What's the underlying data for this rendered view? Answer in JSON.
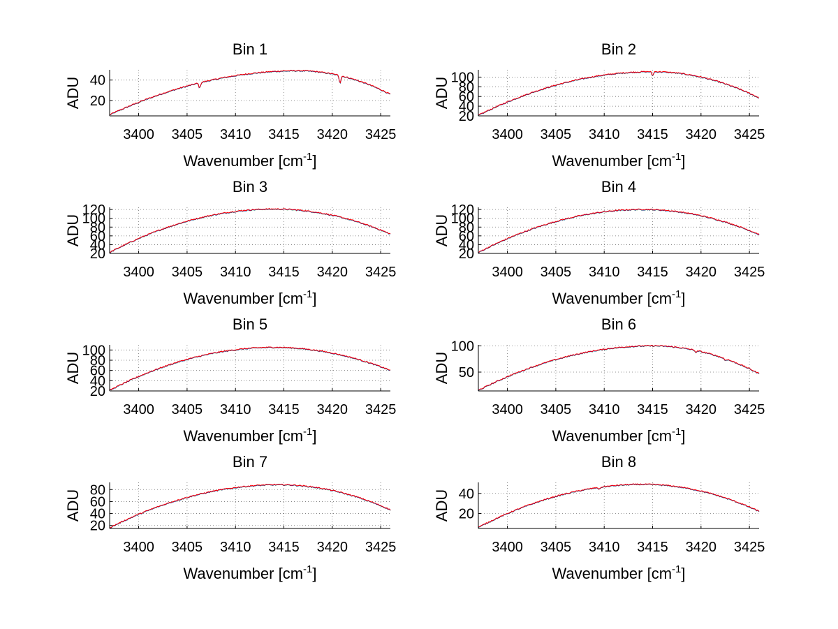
{
  "chart_data": [
    {
      "type": "line",
      "title": "Bin 1",
      "xlabel": "Wavenumber [cm-1]",
      "ylabel": "ADU",
      "xlim": [
        3397,
        3426
      ],
      "ylim": [
        5,
        50
      ],
      "xticks": [
        3400,
        3405,
        3410,
        3415,
        3420,
        3425
      ],
      "yticks": [
        20,
        40
      ],
      "grid": true,
      "peak": {
        "x": 3416.5,
        "y": 49
      },
      "start_y": 6,
      "end_y": 26,
      "dips": [
        {
          "x": 3406.3,
          "depth": 5
        },
        {
          "x": 3420.8,
          "depth": 7
        }
      ],
      "series": [
        {
          "color": "#2ca02c"
        },
        {
          "color": "#0000ff"
        },
        {
          "color": "#ff0000"
        }
      ]
    },
    {
      "type": "line",
      "title": "Bin 2",
      "xlabel": "Wavenumber [cm-1]",
      "ylabel": "ADU",
      "xlim": [
        3397,
        3426
      ],
      "ylim": [
        20,
        115
      ],
      "xticks": [
        3400,
        3405,
        3410,
        3415,
        3420,
        3425
      ],
      "yticks": [
        20,
        40,
        60,
        80,
        100
      ],
      "grid": true,
      "peak": {
        "x": 3415,
        "y": 111
      },
      "start_y": 21,
      "end_y": 57,
      "dips": [
        {
          "x": 3415,
          "depth": 8
        }
      ],
      "series": [
        {
          "color": "#2ca02c"
        },
        {
          "color": "#0000ff"
        },
        {
          "color": "#ff0000"
        }
      ]
    },
    {
      "type": "line",
      "title": "Bin 3",
      "xlabel": "Wavenumber [cm-1]",
      "ylabel": "ADU",
      "xlim": [
        3397,
        3426
      ],
      "ylim": [
        20,
        125
      ],
      "xticks": [
        3400,
        3405,
        3410,
        3415,
        3420,
        3425
      ],
      "yticks": [
        20,
        40,
        60,
        80,
        100,
        120
      ],
      "grid": true,
      "peak": {
        "x": 3414,
        "y": 121
      },
      "start_y": 22,
      "end_y": 64,
      "dips": [],
      "series": [
        {
          "color": "#2ca02c"
        },
        {
          "color": "#0000ff"
        },
        {
          "color": "#ff0000"
        }
      ]
    },
    {
      "type": "line",
      "title": "Bin 4",
      "xlabel": "Wavenumber [cm-1]",
      "ylabel": "ADU",
      "xlim": [
        3397,
        3426
      ],
      "ylim": [
        20,
        125
      ],
      "xticks": [
        3400,
        3405,
        3410,
        3415,
        3420,
        3425
      ],
      "yticks": [
        20,
        40,
        60,
        80,
        100,
        120
      ],
      "grid": true,
      "peak": {
        "x": 3414,
        "y": 120
      },
      "start_y": 22,
      "end_y": 63,
      "dips": [],
      "series": [
        {
          "color": "#2ca02c"
        },
        {
          "color": "#0000ff"
        },
        {
          "color": "#ff0000"
        }
      ]
    },
    {
      "type": "line",
      "title": "Bin 5",
      "xlabel": "Wavenumber [cm-1]",
      "ylabel": "ADU",
      "xlim": [
        3397,
        3426
      ],
      "ylim": [
        20,
        110
      ],
      "xticks": [
        3400,
        3405,
        3410,
        3415,
        3420,
        3425
      ],
      "yticks": [
        20,
        40,
        60,
        80,
        100
      ],
      "grid": true,
      "peak": {
        "x": 3414,
        "y": 105
      },
      "start_y": 21,
      "end_y": 60,
      "dips": [],
      "series": [
        {
          "color": "#2ca02c"
        },
        {
          "color": "#0000ff"
        },
        {
          "color": "#ff0000"
        }
      ]
    },
    {
      "type": "line",
      "title": "Bin 6",
      "xlabel": "Wavenumber [cm-1]",
      "ylabel": "ADU",
      "xlim": [
        3397,
        3426
      ],
      "ylim": [
        14,
        102
      ],
      "xticks": [
        3400,
        3405,
        3410,
        3415,
        3420,
        3425
      ],
      "yticks": [
        50,
        100
      ],
      "grid": true,
      "peak": {
        "x": 3415,
        "y": 100
      },
      "start_y": 15,
      "end_y": 47,
      "dips": [
        {
          "x": 3419.5,
          "depth": 4
        },
        {
          "x": 3422.5,
          "depth": 3
        }
      ],
      "series": [
        {
          "color": "#2ca02c"
        },
        {
          "color": "#0000ff"
        },
        {
          "color": "#ff0000"
        }
      ]
    },
    {
      "type": "line",
      "title": "Bin 7",
      "xlabel": "Wavenumber [cm-1]",
      "ylabel": "ADU",
      "xlim": [
        3397,
        3426
      ],
      "ylim": [
        15,
        92
      ],
      "xticks": [
        3400,
        3405,
        3410,
        3415,
        3420,
        3425
      ],
      "yticks": [
        20,
        40,
        60,
        80
      ],
      "grid": true,
      "peak": {
        "x": 3414.5,
        "y": 88
      },
      "start_y": 16,
      "end_y": 46,
      "dips": [],
      "series": [
        {
          "color": "#2ca02c"
        },
        {
          "color": "#0000ff"
        },
        {
          "color": "#ff0000"
        }
      ]
    },
    {
      "type": "line",
      "title": "Bin 8",
      "xlabel": "Wavenumber [cm-1]",
      "ylabel": "ADU",
      "xlim": [
        3397,
        3426
      ],
      "ylim": [
        5,
        51
      ],
      "xticks": [
        3400,
        3405,
        3410,
        3415,
        3420,
        3425
      ],
      "yticks": [
        20,
        40
      ],
      "grid": true,
      "peak": {
        "x": 3414,
        "y": 49
      },
      "start_y": 6,
      "end_y": 22,
      "dips": [
        {
          "x": 3409.5,
          "depth": 2
        }
      ],
      "series": [
        {
          "color": "#2ca02c"
        },
        {
          "color": "#0000ff"
        },
        {
          "color": "#ff0000"
        }
      ]
    }
  ]
}
